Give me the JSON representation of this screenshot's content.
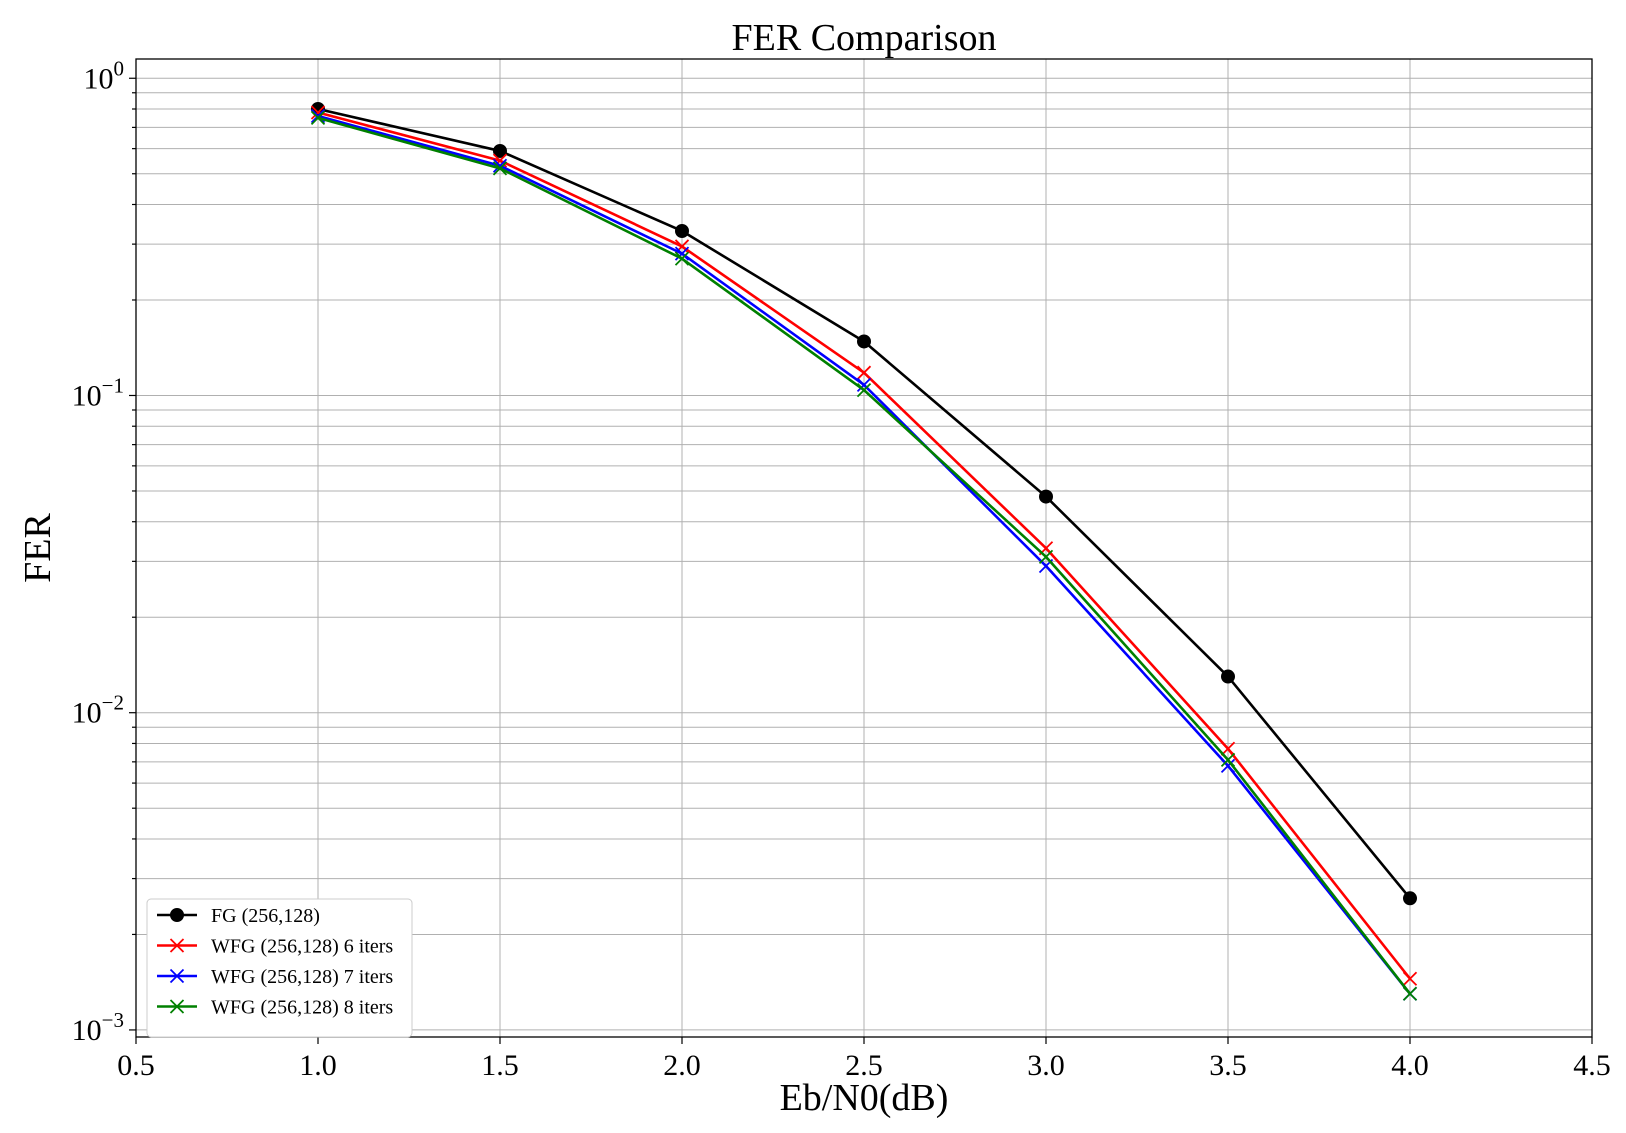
{
  "chart_data": {
    "type": "line",
    "title": "FER Comparison",
    "xlabel": "Eb/N0(dB)",
    "ylabel": "FER",
    "xlim": [
      0.5,
      4.5
    ],
    "ylim": [
      0.00095,
      1.15
    ],
    "yscale": "log",
    "grid": "major and minor",
    "legend_position": "lower-left",
    "x_ticks": [
      0.5,
      1.0,
      1.5,
      2.0,
      2.5,
      3.0,
      3.5,
      4.0,
      4.5
    ],
    "x_tick_labels": [
      "0.5",
      "1.0",
      "1.5",
      "2.0",
      "2.5",
      "3.0",
      "3.5",
      "4.0",
      "4.5"
    ],
    "y_ticks": [
      {
        "value": 1,
        "base": "10",
        "exp": "0"
      },
      {
        "value": 0.1,
        "base": "10",
        "exp": "−1"
      },
      {
        "value": 0.01,
        "base": "10",
        "exp": "−2"
      },
      {
        "value": 0.001,
        "base": "10",
        "exp": "−3"
      }
    ],
    "series": [
      {
        "name": "FG (256,128)",
        "color": "#000000",
        "marker": "circle",
        "x": [
          1.0,
          1.5,
          2.0,
          2.5,
          3.0,
          3.5,
          4.0
        ],
        "y": [
          0.8,
          0.59,
          0.33,
          0.148,
          0.048,
          0.013,
          0.0026
        ]
      },
      {
        "name": "WFG (256,128) 6 iters",
        "color": "#ff0000",
        "marker": "x",
        "x": [
          1.0,
          1.5,
          2.0,
          2.5,
          3.0,
          3.5,
          4.0
        ],
        "y": [
          0.78,
          0.55,
          0.295,
          0.118,
          0.033,
          0.0077,
          0.00145
        ]
      },
      {
        "name": "WFG (256,128) 7 iters",
        "color": "#0000ff",
        "marker": "x",
        "x": [
          1.0,
          1.5,
          2.0,
          2.5,
          3.0,
          3.5,
          4.0
        ],
        "y": [
          0.76,
          0.53,
          0.28,
          0.108,
          0.029,
          0.0068,
          0.0013
        ]
      },
      {
        "name": "WFG (256,128) 8 iters",
        "color": "#008000",
        "marker": "x",
        "x": [
          1.0,
          1.5,
          2.0,
          2.5,
          3.0,
          3.5,
          4.0
        ],
        "y": [
          0.75,
          0.52,
          0.27,
          0.104,
          0.031,
          0.0071,
          0.0013
        ]
      }
    ]
  }
}
